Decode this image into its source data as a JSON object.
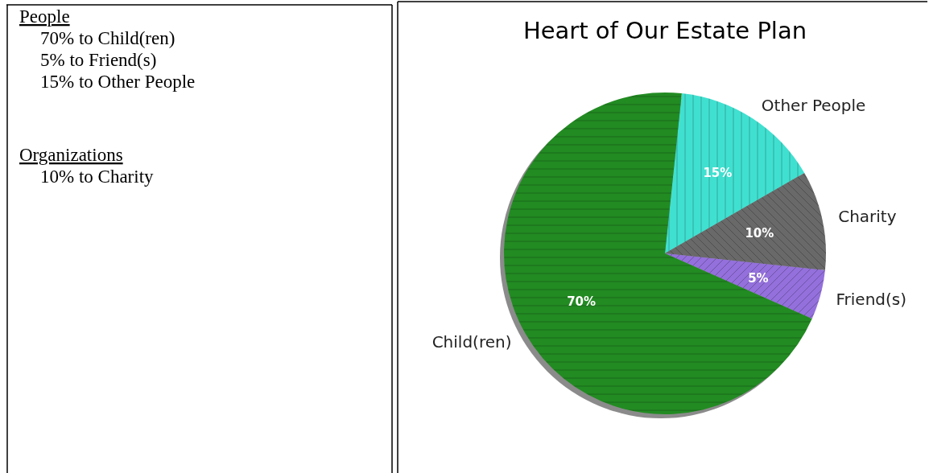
{
  "chart_data": [
    {
      "type": "other",
      "title": "People",
      "annotations": [
        "70% to Child(ren)",
        "5% to Friend(s)",
        "15% to Other People"
      ]
    },
    {
      "type": "other",
      "title": "Organizations",
      "annotations": [
        "10% to Charity"
      ]
    },
    {
      "type": "pie",
      "title": "Heart of Our Estate Plan",
      "categories": [
        "Other People",
        "Charity",
        "Friend(s)",
        "Child(ren)"
      ],
      "values": [
        15,
        10,
        5,
        70
      ],
      "colors": [
        "#40e0d0",
        "#696969",
        "#9370db",
        "#228b22"
      ],
      "value_labels": [
        "15%",
        "10%",
        "5%",
        "70%"
      ]
    }
  ]
}
